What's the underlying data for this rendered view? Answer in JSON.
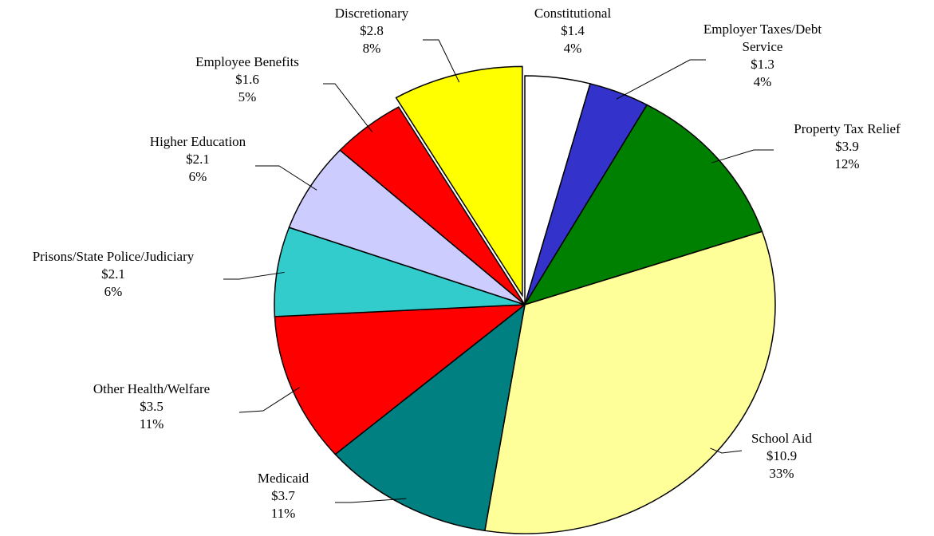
{
  "chart_data": {
    "type": "pie",
    "categories": [
      "Constitutional",
      "Employer Taxes/Debt Service",
      "Property Tax Relief",
      "School Aid",
      "Medicaid",
      "Other Health/Welfare",
      "Prisons/State Police/Judiciary",
      "Higher Education",
      "Employee Benefits",
      "Discretionary"
    ],
    "values": [
      1.4,
      1.3,
      3.9,
      10.9,
      3.7,
      3.5,
      2.1,
      2.1,
      1.6,
      2.8
    ],
    "value_labels": [
      "$1.4",
      "$1.3",
      "$3.9",
      "$10.9",
      "$3.7",
      "$3.5",
      "$2.1",
      "$2.1",
      "$1.6",
      "$2.8"
    ],
    "percent_labels": [
      "4%",
      "4%",
      "12%",
      "33%",
      "11%",
      "11%",
      "6%",
      "6%",
      "5%",
      "8%"
    ],
    "colors": [
      "#ffffff",
      "#3333cc",
      "#008000",
      "#ffff99",
      "#008080",
      "#ff0000",
      "#33cccc",
      "#ccccff",
      "#ff0000",
      "#ffff00"
    ],
    "exploded": [
      false,
      false,
      false,
      false,
      false,
      false,
      false,
      false,
      false,
      true
    ]
  }
}
